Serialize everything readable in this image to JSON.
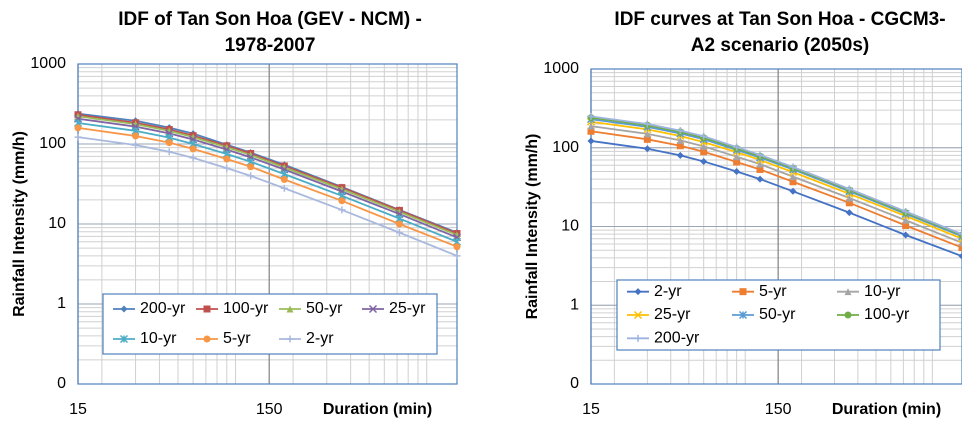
{
  "chart_data": [
    {
      "type": "line",
      "title": [
        "IDF of Tan Son Hoa (GEV - NCM) -",
        "1978-2007"
      ],
      "x_label": "Duration (min)",
      "y_label": "Rainfall Intensity (mm/h)",
      "x": [
        15,
        30,
        45,
        60,
        90,
        120,
        180,
        360,
        720,
        1440
      ],
      "xlim": [
        15,
        1440
      ],
      "xticks": [
        15,
        150
      ],
      "x_log": true,
      "ylim": [
        0.1,
        1000
      ],
      "yticks": [
        {
          "value": 0.1,
          "label": "0"
        },
        1,
        10,
        100,
        1000
      ],
      "y_log": true,
      "grid": true,
      "legend": "lower center",
      "series": [
        {
          "name": "200-yr",
          "color": "#4f81bd",
          "marker": "diamond",
          "values": [
            240,
            195,
            160,
            135,
            98,
            78,
            55,
            29,
            15,
            7.8
          ]
        },
        {
          "name": "100-yr",
          "color": "#c0504d",
          "marker": "square",
          "values": [
            232,
            184,
            152,
            127,
            95,
            76,
            53,
            28.5,
            14.8,
            7.6
          ]
        },
        {
          "name": "50-yr",
          "color": "#9bbb59",
          "marker": "triangle",
          "values": [
            222,
            177,
            146,
            122,
            91,
            73,
            51,
            27.3,
            14.2,
            7.3
          ]
        },
        {
          "name": "25-yr",
          "color": "#8064a2",
          "marker": "x",
          "values": [
            207,
            165,
            136,
            114,
            85,
            68,
            48,
            25.5,
            13.3,
            6.8
          ]
        },
        {
          "name": "10-yr",
          "color": "#4bacc6",
          "marker": "star",
          "values": [
            183,
            146,
            120,
            100,
            75,
            60,
            42,
            22.5,
            11.7,
            6
          ]
        },
        {
          "name": "5-yr",
          "color": "#f79646",
          "marker": "circle",
          "values": [
            159,
            126,
            104,
            87,
            65,
            52,
            36,
            19.5,
            10,
            5.2
          ]
        },
        {
          "name": "2-yr",
          "color": "#a9b9de",
          "marker": "plus",
          "values": [
            122,
            97,
            80,
            67,
            50,
            40,
            28,
            15,
            7.8,
            4
          ]
        }
      ]
    },
    {
      "type": "line",
      "title": [
        "IDF curves at Tan Son Hoa - CGCM3-",
        "A2 scenario (2050s)"
      ],
      "x_label": "Duration (min)",
      "y_label": "Rainfall Intensity (mm/h)",
      "x": [
        15,
        30,
        45,
        60,
        90,
        120,
        180,
        360,
        720,
        1440
      ],
      "xlim": [
        15,
        1440
      ],
      "xticks": [
        15,
        150
      ],
      "x_log": true,
      "ylim": [
        0.1,
        1000
      ],
      "yticks": [
        {
          "value": 0.1,
          "label": "0"
        },
        1,
        10,
        100,
        1000
      ],
      "y_log": true,
      "grid": true,
      "legend": "lower center",
      "series": [
        {
          "name": "2-yr",
          "color": "#4472c4",
          "marker": "diamond",
          "values": [
            122,
            97,
            80,
            67,
            50,
            40,
            28,
            15,
            7.8,
            4.2
          ]
        },
        {
          "name": "5-yr",
          "color": "#ed7d31",
          "marker": "square",
          "values": [
            162,
            128,
            106,
            89,
            66,
            53,
            37,
            20,
            10.3,
            5.4
          ]
        },
        {
          "name": "10-yr",
          "color": "#a5a5a5",
          "marker": "triangle",
          "values": [
            188,
            150,
            124,
            104,
            77,
            62,
            43,
            23,
            12,
            6.2
          ]
        },
        {
          "name": "25-yr",
          "color": "#ffc000",
          "marker": "x",
          "values": [
            214,
            171,
            141,
            118,
            88,
            70,
            49,
            26,
            13.6,
            7
          ]
        },
        {
          "name": "50-yr",
          "color": "#5b9bd5",
          "marker": "star",
          "values": [
            230,
            184,
            152,
            128,
            94,
            75,
            53,
            28,
            14.5,
            7.5
          ]
        },
        {
          "name": "100-yr",
          "color": "#70ad47",
          "marker": "circle",
          "values": [
            241,
            193,
            159,
            134,
            98,
            78,
            55,
            29,
            15,
            7.8
          ]
        },
        {
          "name": "200-yr",
          "color": "#9eb4e0",
          "marker": "plus",
          "values": [
            250,
            200,
            165,
            140,
            102,
            81,
            57,
            30,
            15.5,
            8
          ]
        }
      ]
    }
  ]
}
